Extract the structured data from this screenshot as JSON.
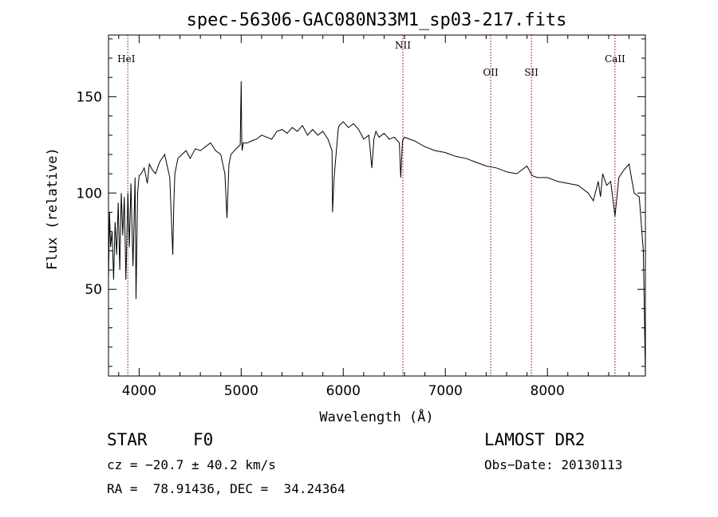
{
  "chart_data": {
    "type": "line",
    "title": "spec-56306-GAC080N33M1_sp03-217.fits",
    "xlabel": "Wavelength (Å)",
    "ylabel": "Flux (relative)",
    "xlim": [
      3700,
      8960
    ],
    "ylim": [
      5,
      182
    ],
    "xticks": [
      4000,
      5000,
      6000,
      7000,
      8000
    ],
    "yticks": [
      50,
      100,
      150
    ],
    "grid": false,
    "line_color": "#000000",
    "marker_color": "#8b0000",
    "spectral_lines": [
      {
        "name": "HeI",
        "wavelength": 3889
      },
      {
        "name": "NII",
        "wavelength": 6584
      },
      {
        "name": "OII",
        "wavelength": 7444
      },
      {
        "name": "SII",
        "wavelength": 7843
      },
      {
        "name": "CaII",
        "wavelength": 8662
      }
    ],
    "series": [
      {
        "x": [
          3700,
          3710,
          3720,
          3735,
          3750,
          3765,
          3780,
          3795,
          3810,
          3825,
          3840,
          3855,
          3870,
          3890,
          3905,
          3920,
          3940,
          3960,
          3970,
          3985,
          4000,
          4020,
          4050,
          4080,
          4100,
          4130,
          4160,
          4200,
          4250,
          4300,
          4330,
          4340,
          4350,
          4380,
          4420,
          4460,
          4500,
          4550,
          4600,
          4650,
          4700,
          4750,
          4800,
          4840,
          4861,
          4880,
          4900,
          4950,
          4990,
          5000,
          5005,
          5010,
          5020,
          5060,
          5100,
          5150,
          5200,
          5250,
          5300,
          5350,
          5400,
          5450,
          5500,
          5550,
          5600,
          5650,
          5700,
          5750,
          5800,
          5850,
          5890,
          5895,
          5910,
          5950,
          5960,
          6000,
          6050,
          6100,
          6150,
          6200,
          6250,
          6280,
          6300,
          6320,
          6350,
          6400,
          6450,
          6500,
          6550,
          6563,
          6580,
          6600,
          6650,
          6700,
          6800,
          6900,
          7000,
          7100,
          7200,
          7300,
          7400,
          7500,
          7600,
          7700,
          7800,
          7850,
          7900,
          8000,
          8100,
          8200,
          8300,
          8400,
          8450,
          8498,
          8520,
          8542,
          8580,
          8620,
          8662,
          8700,
          8750,
          8800,
          8850,
          8900,
          8940,
          8960
        ],
        "y": [
          55,
          90,
          72,
          80,
          55,
          85,
          68,
          95,
          60,
          100,
          78,
          98,
          55,
          100,
          72,
          105,
          62,
          108,
          45,
          100,
          109,
          110,
          113,
          105,
          115,
          112,
          110,
          116,
          120,
          108,
          68,
          95,
          110,
          118,
          120,
          122,
          118,
          123,
          122,
          124,
          126,
          122,
          120,
          110,
          87,
          115,
          120,
          123,
          125,
          158,
          128,
          122,
          126,
          126,
          127,
          128,
          130,
          129,
          128,
          132,
          133,
          131,
          134,
          132,
          135,
          130,
          133,
          130,
          132,
          128,
          122,
          90,
          108,
          133,
          135,
          137,
          134,
          136,
          133,
          128,
          130,
          113,
          128,
          132,
          129,
          131,
          128,
          129,
          126,
          108,
          127,
          129,
          128,
          127,
          124,
          122,
          121,
          119,
          118,
          116,
          114,
          113,
          111,
          110,
          114,
          109,
          108,
          108,
          106,
          105,
          104,
          100,
          96,
          106,
          98,
          110,
          104,
          106,
          88,
          108,
          112,
          115,
          100,
          98,
          70,
          5
        ]
      }
    ]
  },
  "footer": {
    "object_class": "STAR",
    "spectral_type": "F0",
    "survey": "LAMOST DR2",
    "cz_text": "cz = −20.7 ± 40.2 km/s",
    "obs_date_text": "Obs−Date: 20130113",
    "radec_text": "RA =  78.91436, DEC =  34.24364"
  }
}
